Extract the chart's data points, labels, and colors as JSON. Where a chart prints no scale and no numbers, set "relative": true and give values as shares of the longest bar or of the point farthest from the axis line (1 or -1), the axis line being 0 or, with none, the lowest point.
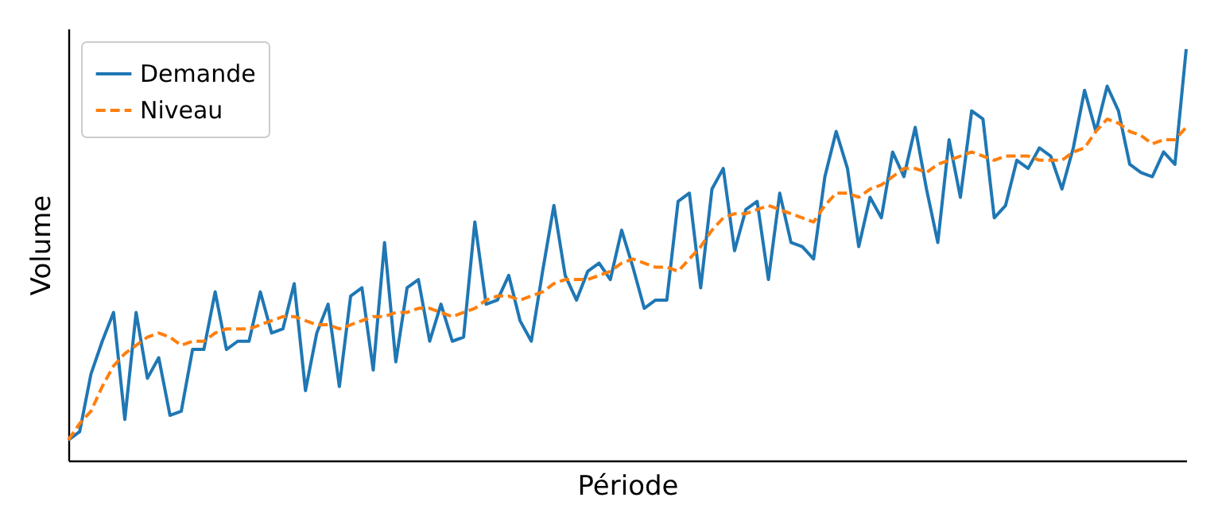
{
  "chart_data": {
    "type": "line",
    "xlabel": "Période",
    "ylabel": "Volume",
    "relative": true,
    "grid": false,
    "legend": "top left",
    "marker": "none",
    "categories": [
      null,
      null,
      null,
      null,
      null,
      null,
      null,
      null,
      null,
      null,
      null,
      null,
      null,
      null,
      null,
      null,
      null,
      null,
      null,
      null,
      null,
      null,
      null,
      null,
      null,
      null,
      null,
      null,
      null,
      null,
      null,
      null,
      null,
      null,
      null,
      null,
      null,
      null,
      null,
      null,
      null,
      null,
      null,
      null,
      null,
      null,
      null,
      null,
      null,
      null,
      null,
      null,
      null,
      null,
      null,
      null,
      null,
      null,
      null,
      null,
      null,
      null,
      null,
      null,
      null,
      null,
      null,
      null,
      null,
      null,
      null,
      null,
      null,
      null,
      null,
      null,
      null,
      null,
      null,
      null,
      null,
      null,
      null,
      null,
      null,
      null,
      null,
      null,
      null,
      null,
      null,
      null,
      null,
      null,
      null,
      null,
      null,
      null,
      null,
      null
    ],
    "series": [
      {
        "name": "Demande",
        "color": "#1f77b4",
        "line_style": "solid",
        "values": [
          0.05,
          0.07,
          0.21,
          0.29,
          0.36,
          0.1,
          0.36,
          0.2,
          0.25,
          0.11,
          0.12,
          0.27,
          0.27,
          0.41,
          0.27,
          0.29,
          0.29,
          0.41,
          0.31,
          0.32,
          0.43,
          0.17,
          0.31,
          0.38,
          0.18,
          0.4,
          0.42,
          0.22,
          0.53,
          0.24,
          0.42,
          0.44,
          0.29,
          0.38,
          0.29,
          0.3,
          0.58,
          0.38,
          0.39,
          0.45,
          0.34,
          0.29,
          0.46,
          0.62,
          0.45,
          0.39,
          0.46,
          0.48,
          0.44,
          0.56,
          0.47,
          0.37,
          0.39,
          0.39,
          0.63,
          0.65,
          0.42,
          0.66,
          0.71,
          0.51,
          0.61,
          0.63,
          0.44,
          0.65,
          0.53,
          0.52,
          0.49,
          0.69,
          0.8,
          0.71,
          0.52,
          0.64,
          0.59,
          0.75,
          0.69,
          0.81,
          0.66,
          0.53,
          0.78,
          0.64,
          0.85,
          0.83,
          0.59,
          0.62,
          0.73,
          0.71,
          0.76,
          0.74,
          0.66,
          0.76,
          0.9,
          0.8,
          0.91,
          0.85,
          0.72,
          0.7,
          0.69,
          0.75,
          0.72,
          1
        ]
      },
      {
        "name": "Niveau",
        "color": "#ff7f0e",
        "line_style": "dashed",
        "values": [
          0.05,
          0.09,
          0.12,
          0.18,
          0.23,
          0.26,
          0.28,
          0.3,
          0.31,
          0.3,
          0.28,
          0.29,
          0.29,
          0.31,
          0.32,
          0.32,
          0.32,
          0.33,
          0.34,
          0.35,
          0.35,
          0.34,
          0.33,
          0.33,
          0.32,
          0.33,
          0.34,
          0.35,
          0.35,
          0.36,
          0.36,
          0.37,
          0.37,
          0.36,
          0.35,
          0.36,
          0.37,
          0.39,
          0.4,
          0.4,
          0.39,
          0.4,
          0.41,
          0.43,
          0.44,
          0.44,
          0.44,
          0.45,
          0.46,
          0.48,
          0.49,
          0.48,
          0.47,
          0.47,
          0.46,
          0.49,
          0.52,
          0.56,
          0.59,
          0.6,
          0.6,
          0.61,
          0.62,
          0.61,
          0.6,
          0.59,
          0.58,
          0.62,
          0.65,
          0.65,
          0.64,
          0.66,
          0.67,
          0.69,
          0.71,
          0.71,
          0.7,
          0.72,
          0.73,
          0.74,
          0.75,
          0.74,
          0.73,
          0.74,
          0.74,
          0.74,
          0.73,
          0.73,
          0.73,
          0.75,
          0.76,
          0.8,
          0.83,
          0.82,
          0.8,
          0.79,
          0.77,
          0.78,
          0.78,
          0.81
        ]
      }
    ]
  }
}
